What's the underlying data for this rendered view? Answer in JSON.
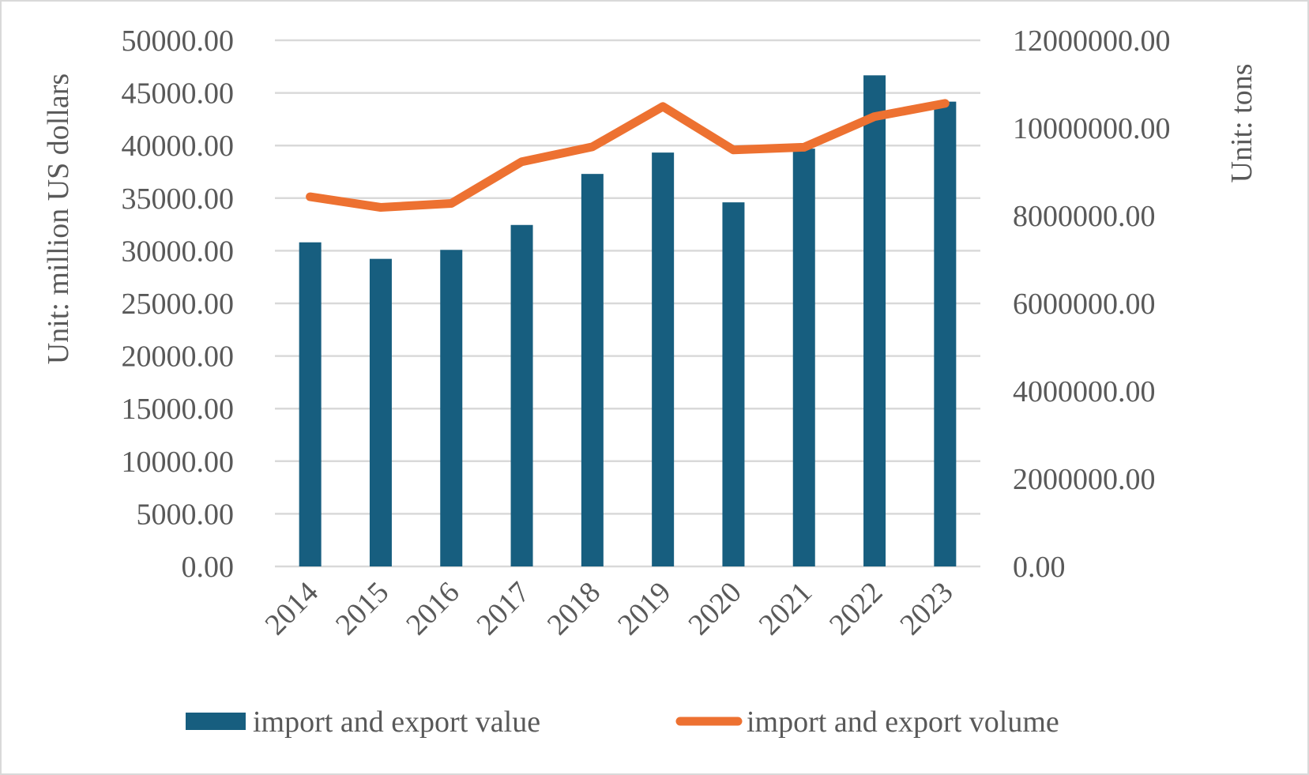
{
  "chart_data": {
    "type": "bar",
    "title": "",
    "categories": [
      "2014",
      "2015",
      "2016",
      "2017",
      "2018",
      "2019",
      "2020",
      "2021",
      "2022",
      "2023"
    ],
    "series": [
      {
        "name": "import and export value",
        "type": "bar",
        "axis": "left",
        "color": "#175e7f",
        "values": [
          30800,
          29230,
          30080,
          32450,
          37300,
          39330,
          34600,
          39700,
          46670,
          44170
        ]
      },
      {
        "name": "import and export volume",
        "type": "line",
        "axis": "right",
        "color": "#ed7131",
        "values": [
          8430000,
          8190000,
          8280000,
          9230000,
          9570000,
          10490000,
          9500000,
          9560000,
          10260000,
          10560000
        ]
      }
    ],
    "ylabel": "Unit: million US dollars",
    "y2label": "Unit: tons",
    "xlabel": "",
    "ylim": [
      0,
      50000
    ],
    "y2lim": [
      0,
      12000000
    ],
    "yticks": [
      "0.00",
      "5000.00",
      "10000.00",
      "15000.00",
      "20000.00",
      "25000.00",
      "30000.00",
      "35000.00",
      "40000.00",
      "45000.00",
      "50000.00"
    ],
    "y2ticks": [
      "0.00",
      "2000000.00",
      "4000000.00",
      "6000000.00",
      "8000000.00",
      "10000000.00",
      "12000000.00"
    ],
    "grid": true,
    "legend_position": "bottom",
    "x_tick_rotation": "-45 degrees"
  },
  "colors": {
    "grid": "#d9d9d9",
    "text": "#595959",
    "frame": "#d9d9d9"
  }
}
